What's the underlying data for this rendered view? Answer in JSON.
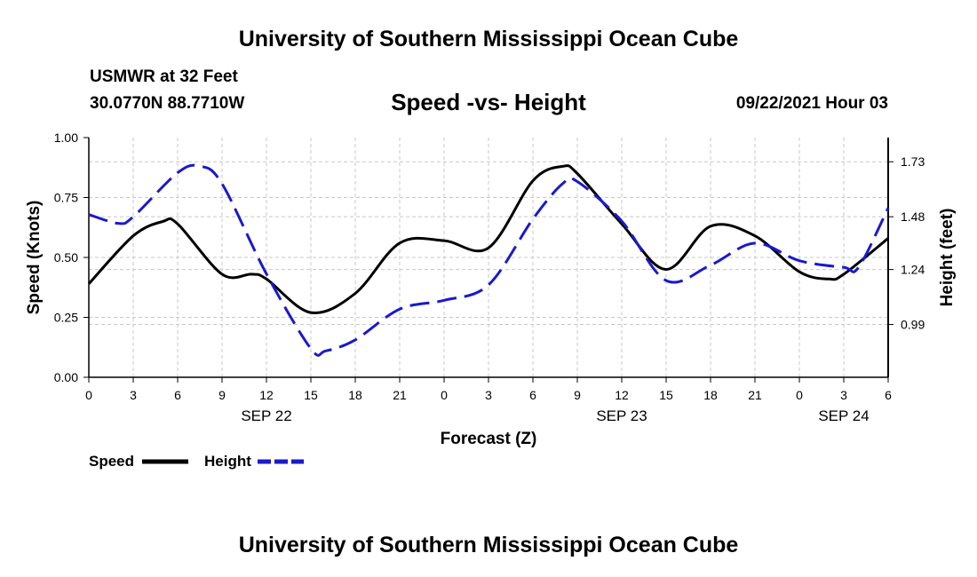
{
  "header": {
    "title": "University of Southern Mississippi Ocean Cube",
    "station": "USMWR at 32 Feet",
    "coordinates": "30.0770N  88.7710W",
    "subtitle": "Speed -vs- Height",
    "datetime": "09/22/2021 Hour 03"
  },
  "footer": {
    "title": "University of Southern Mississippi Ocean Cube"
  },
  "chart_data": {
    "type": "line",
    "title": "Speed -vs- Height",
    "xlabel": "Forecast (Z)",
    "ylabel": "Speed (Knots)",
    "y2label": "Height (feet)",
    "x_hours_range": [
      0,
      54
    ],
    "x_ticks": [
      {
        "h": 0,
        "label": "0"
      },
      {
        "h": 3,
        "label": "3"
      },
      {
        "h": 6,
        "label": "6"
      },
      {
        "h": 9,
        "label": "9"
      },
      {
        "h": 12,
        "label": "12"
      },
      {
        "h": 15,
        "label": "15"
      },
      {
        "h": 18,
        "label": "18"
      },
      {
        "h": 21,
        "label": "21"
      },
      {
        "h": 24,
        "label": "0"
      },
      {
        "h": 27,
        "label": "3"
      },
      {
        "h": 30,
        "label": "6"
      },
      {
        "h": 33,
        "label": "9"
      },
      {
        "h": 36,
        "label": "12"
      },
      {
        "h": 39,
        "label": "15"
      },
      {
        "h": 42,
        "label": "18"
      },
      {
        "h": 45,
        "label": "21"
      },
      {
        "h": 48,
        "label": "0"
      },
      {
        "h": 51,
        "label": "3"
      },
      {
        "h": 54,
        "label": "6"
      }
    ],
    "date_labels": [
      {
        "h": 12,
        "label": "SEP 22"
      },
      {
        "h": 36,
        "label": "SEP 23"
      },
      {
        "h": 51,
        "label": "SEP 24"
      }
    ],
    "ylim": [
      0,
      1.0
    ],
    "y_ticks": [
      {
        "v": 0.0,
        "label": "0.00"
      },
      {
        "v": 0.25,
        "label": "0.25"
      },
      {
        "v": 0.5,
        "label": "0.50"
      },
      {
        "v": 0.75,
        "label": "0.75"
      },
      {
        "v": 1.0,
        "label": "1.00"
      }
    ],
    "y2lim": [
      0.75,
      1.84
    ],
    "y2_ticks": [
      {
        "v": 0.99,
        "label": "0.99"
      },
      {
        "v": 1.24,
        "label": "1.24"
      },
      {
        "v": 1.48,
        "label": "1.48"
      },
      {
        "v": 1.73,
        "label": "1.73"
      }
    ],
    "grid": true,
    "series": [
      {
        "name": "Speed",
        "axis": "left",
        "color": "#000000",
        "dash": "solid",
        "x": [
          0,
          3,
          5,
          6,
          9,
          11,
          12,
          15,
          18,
          21,
          24,
          27,
          30,
          32,
          33,
          36,
          39,
          42,
          45,
          48,
          50,
          51,
          54
        ],
        "y": [
          0.39,
          0.59,
          0.65,
          0.64,
          0.43,
          0.43,
          0.41,
          0.27,
          0.35,
          0.56,
          0.57,
          0.54,
          0.82,
          0.88,
          0.85,
          0.64,
          0.45,
          0.63,
          0.59,
          0.44,
          0.41,
          0.43,
          0.58
        ]
      },
      {
        "name": "Height",
        "axis": "right",
        "color": "#1a1acc",
        "dash": "dashed",
        "x": [
          0,
          2,
          3,
          6,
          7.5,
          9,
          12,
          15,
          16,
          18,
          21,
          24,
          27,
          30,
          32,
          33,
          36,
          39,
          42,
          45,
          48,
          51,
          52,
          54
        ],
        "y": [
          1.49,
          1.45,
          1.48,
          1.68,
          1.71,
          1.63,
          1.22,
          0.88,
          0.87,
          0.92,
          1.06,
          1.1,
          1.17,
          1.47,
          1.63,
          1.64,
          1.46,
          1.19,
          1.26,
          1.36,
          1.28,
          1.25,
          1.25,
          1.52
        ]
      }
    ],
    "legend": {
      "placement": "bottom-left",
      "speed_label": "Speed",
      "height_label": "Height"
    }
  }
}
